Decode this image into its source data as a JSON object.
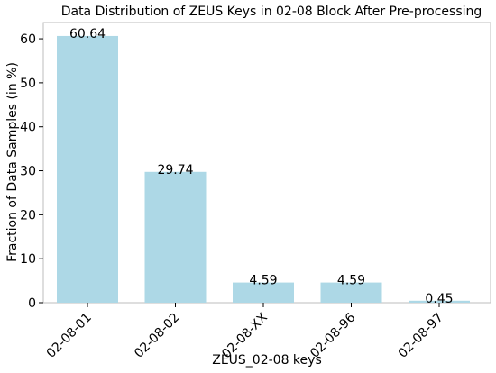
{
  "chart_data": {
    "type": "bar",
    "title": "Data Distribution of ZEUS Keys in 02-08 Block After Pre-processing",
    "xlabel": "ZEUS_02-08 keys",
    "ylabel": "Fraction of Data Samples (in %)",
    "categories": [
      "02-08-01",
      "02-08-02",
      "02-08-XX",
      "02-08-96",
      "02-08-97"
    ],
    "values": [
      60.64,
      29.74,
      4.59,
      4.59,
      0.45
    ],
    "value_labels": [
      "60.64",
      "29.74",
      "4.59",
      "4.59",
      "0.45"
    ],
    "ylim": [
      0,
      63.7
    ],
    "yticks": [
      0,
      10,
      20,
      30,
      40,
      50,
      60
    ],
    "grid": false,
    "legend": "none",
    "bar_color": "#add8e6",
    "axis_color": "#000000"
  }
}
